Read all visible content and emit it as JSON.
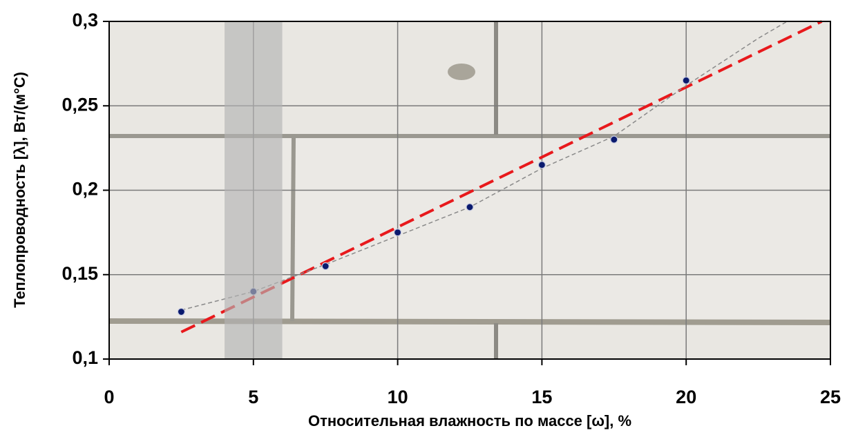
{
  "chart_data": {
    "type": "scatter",
    "x_label": "Относительная влажность по массе [ω], %",
    "y_label": "Теплопроводность [λ], Вт/(м°С)",
    "xlim": [
      0,
      25
    ],
    "xticks": [
      0,
      5,
      10,
      15,
      20,
      25
    ],
    "ylim": [
      0.1,
      0.3
    ],
    "yticks": [
      {
        "value": 0.1,
        "label": "0,1"
      },
      {
        "value": 0.15,
        "label": "0,15"
      },
      {
        "value": 0.2,
        "label": "0,2"
      },
      {
        "value": 0.25,
        "label": "0,25"
      },
      {
        "value": 0.3,
        "label": "0,3"
      }
    ],
    "grid": true,
    "highlight_x": [
      4,
      6
    ],
    "series": [
      {
        "style": "points",
        "color": "#0a1a6e",
        "x": [
          2.5,
          5,
          7.5,
          10,
          12.5,
          15,
          17.5,
          20
        ],
        "values": [
          0.128,
          0.14,
          0.155,
          0.175,
          0.19,
          0.215,
          0.23,
          0.265
        ]
      },
      {
        "style": "thin-dash",
        "color": "#8a8a8a",
        "x": [
          2.5,
          5,
          7.5,
          10,
          12.5,
          15,
          17.5,
          20,
          22.5,
          23.5
        ],
        "values": [
          0.129,
          0.14,
          0.156,
          0.173,
          0.19,
          0.213,
          0.232,
          0.262,
          0.29,
          0.3
        ]
      },
      {
        "style": "thick-dash",
        "color": "#e8191c",
        "x": [
          2.5,
          24.7
        ],
        "values": [
          0.116,
          0.3
        ]
      }
    ]
  }
}
